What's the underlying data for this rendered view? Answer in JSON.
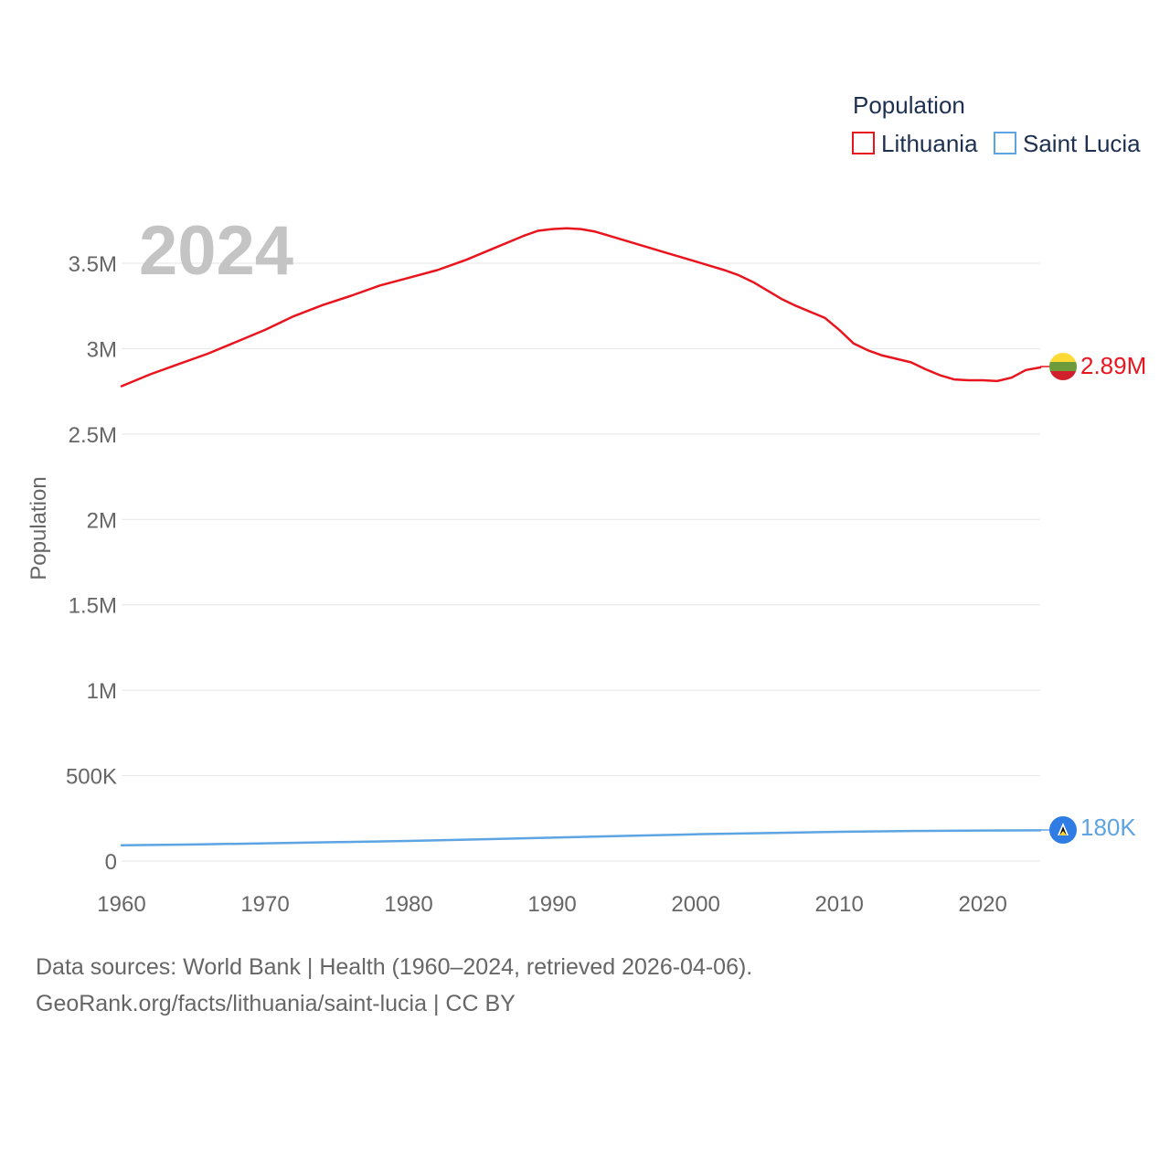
{
  "chart_data": {
    "type": "line",
    "ylabel": "Population",
    "xlabel": "",
    "xlim": [
      1960,
      2024
    ],
    "ylim": [
      0,
      3750000
    ],
    "y_ticks": [
      {
        "value": 0,
        "label": "0"
      },
      {
        "value": 500000,
        "label": "500K"
      },
      {
        "value": 1000000,
        "label": "1M"
      },
      {
        "value": 1500000,
        "label": "1.5M"
      },
      {
        "value": 2000000,
        "label": "2M"
      },
      {
        "value": 2500000,
        "label": "2.5M"
      },
      {
        "value": 3000000,
        "label": "3M"
      },
      {
        "value": 3500000,
        "label": "3.5M"
      }
    ],
    "x_ticks": [
      {
        "value": 1960,
        "label": "1960"
      },
      {
        "value": 1970,
        "label": "1970"
      },
      {
        "value": 1980,
        "label": "1980"
      },
      {
        "value": 1990,
        "label": "1990"
      },
      {
        "value": 2000,
        "label": "2000"
      },
      {
        "value": 2010,
        "label": "2010"
      },
      {
        "value": 2020,
        "label": "2020"
      }
    ],
    "grid": true,
    "year_label": "2024",
    "legend": {
      "title": "Population",
      "position": "top-right"
    },
    "series": [
      {
        "name": "Lithuania",
        "color": "#e8141e",
        "end_label": "2.89M",
        "flag": "lithuania-flag",
        "points": [
          [
            1960,
            2780000
          ],
          [
            1962,
            2850000
          ],
          [
            1964,
            2910000
          ],
          [
            1966,
            2970000
          ],
          [
            1968,
            3040000
          ],
          [
            1970,
            3110000
          ],
          [
            1972,
            3190000
          ],
          [
            1974,
            3255000
          ],
          [
            1976,
            3310000
          ],
          [
            1978,
            3370000
          ],
          [
            1980,
            3415000
          ],
          [
            1982,
            3460000
          ],
          [
            1984,
            3520000
          ],
          [
            1986,
            3590000
          ],
          [
            1988,
            3660000
          ],
          [
            1989,
            3690000
          ],
          [
            1990,
            3700000
          ],
          [
            1991,
            3705000
          ],
          [
            1992,
            3700000
          ],
          [
            1993,
            3685000
          ],
          [
            1994,
            3660000
          ],
          [
            1996,
            3610000
          ],
          [
            1998,
            3560000
          ],
          [
            2000,
            3510000
          ],
          [
            2002,
            3460000
          ],
          [
            2003,
            3430000
          ],
          [
            2004,
            3390000
          ],
          [
            2006,
            3290000
          ],
          [
            2007,
            3250000
          ],
          [
            2009,
            3180000
          ],
          [
            2010,
            3110000
          ],
          [
            2011,
            3030000
          ],
          [
            2012,
            2990000
          ],
          [
            2013,
            2960000
          ],
          [
            2015,
            2920000
          ],
          [
            2016,
            2880000
          ],
          [
            2017,
            2845000
          ],
          [
            2018,
            2820000
          ],
          [
            2019,
            2815000
          ],
          [
            2020,
            2815000
          ],
          [
            2021,
            2810000
          ],
          [
            2022,
            2830000
          ],
          [
            2023,
            2875000
          ],
          [
            2024,
            2890000
          ]
        ]
      },
      {
        "name": "Saint Lucia",
        "color": "#5ea4e2",
        "end_label": "180K",
        "flag": "saint-lucia-flag",
        "points": [
          [
            1960,
            92000
          ],
          [
            1965,
            97000
          ],
          [
            1970,
            104000
          ],
          [
            1975,
            111000
          ],
          [
            1980,
            118000
          ],
          [
            1985,
            127000
          ],
          [
            1990,
            137000
          ],
          [
            1995,
            147000
          ],
          [
            2000,
            157000
          ],
          [
            2005,
            164000
          ],
          [
            2010,
            171000
          ],
          [
            2015,
            176000
          ],
          [
            2020,
            179000
          ],
          [
            2024,
            180000
          ]
        ]
      }
    ]
  },
  "source": {
    "line1": "Data sources: World Bank | Health (1960–2024, retrieved 2026-04-06).",
    "line2": "GeoRank.org/facts/lithuania/saint-lucia | CC BY"
  },
  "colors": {
    "grid": "#e6e6e6",
    "tick_text": "#666666",
    "legend_text": "#1e3050",
    "year_label": "#c4c4c4",
    "lithuania_flag_yellow": "#fdd936",
    "lithuania_flag_green": "#6b9b3a",
    "lithuania_flag_red": "#d0202e",
    "saint_lucia_flag_blue": "#2f7de4"
  }
}
